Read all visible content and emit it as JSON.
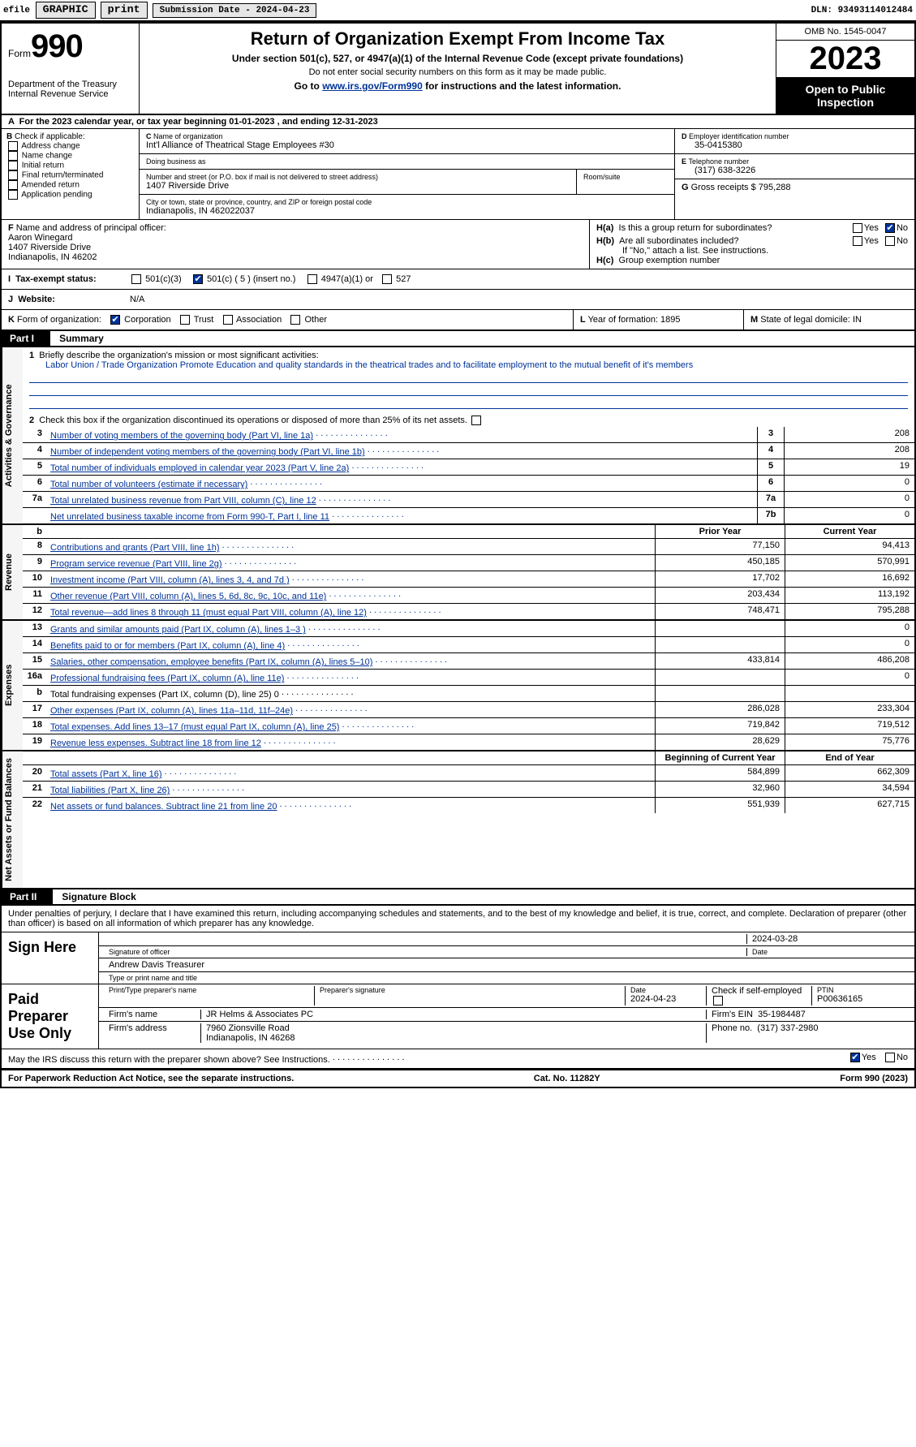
{
  "topbar": {
    "efile_prefix": "efile",
    "graphic_btn": "GRAPHIC",
    "print_btn": "print",
    "submission_label": "Submission Date - 2024-04-23",
    "dln": "DLN: 93493114012484"
  },
  "header": {
    "form_word": "Form",
    "form_number": "990",
    "dept": "Department of the Treasury Internal Revenue Service",
    "title": "Return of Organization Exempt From Income Tax",
    "sub1": "Under section 501(c), 527, or 4947(a)(1) of the Internal Revenue Code (except private foundations)",
    "sub2": "Do not enter social security numbers on this form as it may be made public.",
    "sub3_prefix": "Go to ",
    "sub3_link": "www.irs.gov/Form990",
    "sub3_suffix": " for instructions and the latest information.",
    "omb": "OMB No. 1545-0047",
    "year": "2023",
    "open": "Open to Public Inspection"
  },
  "rowA": "For the 2023 calendar year, or tax year beginning 01-01-2023    , and ending 12-31-2023",
  "boxB": {
    "header": "Check if applicable:",
    "opts": [
      "Address change",
      "Name change",
      "Initial return",
      "Final return/terminated",
      "Amended return",
      "Application pending"
    ]
  },
  "boxC": {
    "name_label": "Name of organization",
    "name": "Int'l Alliance of Theatrical Stage Employees #30",
    "dba_label": "Doing business as",
    "dba": "",
    "street_label": "Number and street (or P.O. box if mail is not delivered to street address)",
    "street": "1407 Riverside Drive",
    "room_label": "Room/suite",
    "city_label": "City or town, state or province, country, and ZIP or foreign postal code",
    "city": "Indianapolis, IN  462022037"
  },
  "boxD": {
    "label": "Employer identification number",
    "val": "35-0415380"
  },
  "boxE": {
    "label": "Telephone number",
    "val": "(317) 638-3226"
  },
  "boxG": {
    "label": "Gross receipts $",
    "val": "795,288"
  },
  "boxF": {
    "label": "Name and address of principal officer:",
    "name": "Aaron Winegard",
    "addr1": "1407 Riverside Drive",
    "addr2": "Indianapolis, IN  46202"
  },
  "boxH": {
    "a_label": "Is this a group return for subordinates?",
    "a_yes": false,
    "a_no": true,
    "b_label": "Are all subordinates included?",
    "b_note": "If \"No,\" attach a list. See instructions.",
    "c_label": "Group exemption number"
  },
  "rowI": {
    "label": "Tax-exempt status:",
    "c3": "501(c)(3)",
    "c_checked": true,
    "c_label": "501(c) ( 5 ) (insert no.)",
    "a1": "4947(a)(1) or",
    "s527": "527"
  },
  "rowJ": {
    "label": "Website:",
    "val": "N/A"
  },
  "rowK": {
    "label": "Form of organization:",
    "corp": "Corporation",
    "trust": "Trust",
    "assoc": "Association",
    "other": "Other",
    "corp_checked": true
  },
  "rowL": {
    "label": "Year of formation: 1895"
  },
  "rowM": {
    "label": "State of legal domicile: IN"
  },
  "partI": {
    "tag": "Part I",
    "title": "Summary"
  },
  "sections": {
    "gov": "Activities & Governance",
    "rev": "Revenue",
    "exp": "Expenses",
    "net": "Net Assets or Fund Balances"
  },
  "line1": {
    "prompt": "Briefly describe the organization's mission or most significant activities:",
    "text": "Labor Union / Trade Organization Promote Education and quality standards in the theatrical trades and to facilitate employment to the mutual benefit of it's members"
  },
  "line2": "Check this box  if the organization discontinued its operations or disposed of more than 25% of its net assets.",
  "govlines": [
    {
      "n": "3",
      "d": "Number of voting members of the governing body (Part VI, line 1a)",
      "ln": "3",
      "v": "208"
    },
    {
      "n": "4",
      "d": "Number of independent voting members of the governing body (Part VI, line 1b)",
      "ln": "4",
      "v": "208"
    },
    {
      "n": "5",
      "d": "Total number of individuals employed in calendar year 2023 (Part V, line 2a)",
      "ln": "5",
      "v": "19"
    },
    {
      "n": "6",
      "d": "Total number of volunteers (estimate if necessary)",
      "ln": "6",
      "v": "0"
    },
    {
      "n": "7a",
      "d": "Total unrelated business revenue from Part VIII, column (C), line 12",
      "ln": "7a",
      "v": "0"
    },
    {
      "n": "",
      "d": "Net unrelated business taxable income from Form 990-T, Part I, line 11",
      "ln": "7b",
      "v": "0"
    }
  ],
  "yearHdr": {
    "b": "b",
    "prior": "Prior Year",
    "current": "Current Year"
  },
  "rev": [
    {
      "n": "8",
      "d": "Contributions and grants (Part VIII, line 1h)",
      "p": "77,150",
      "c": "94,413"
    },
    {
      "n": "9",
      "d": "Program service revenue (Part VIII, line 2g)",
      "p": "450,185",
      "c": "570,991"
    },
    {
      "n": "10",
      "d": "Investment income (Part VIII, column (A), lines 3, 4, and 7d )",
      "p": "17,702",
      "c": "16,692"
    },
    {
      "n": "11",
      "d": "Other revenue (Part VIII, column (A), lines 5, 6d, 8c, 9c, 10c, and 11e)",
      "p": "203,434",
      "c": "113,192"
    },
    {
      "n": "12",
      "d": "Total revenue—add lines 8 through 11 (must equal Part VIII, column (A), line 12)",
      "p": "748,471",
      "c": "795,288"
    }
  ],
  "exp": [
    {
      "n": "13",
      "d": "Grants and similar amounts paid (Part IX, column (A), lines 1–3 )",
      "p": "",
      "c": "0"
    },
    {
      "n": "14",
      "d": "Benefits paid to or for members (Part IX, column (A), line 4)",
      "p": "",
      "c": "0"
    },
    {
      "n": "15",
      "d": "Salaries, other compensation, employee benefits (Part IX, column (A), lines 5–10)",
      "p": "433,814",
      "c": "486,208"
    },
    {
      "n": "16a",
      "d": "Professional fundraising fees (Part IX, column (A), line 11e)",
      "p": "",
      "c": "0"
    },
    {
      "n": "b",
      "d": "Total fundraising expenses (Part IX, column (D), line 25) 0",
      "p": "grey",
      "c": "grey",
      "plain": true
    },
    {
      "n": "17",
      "d": "Other expenses (Part IX, column (A), lines 11a–11d, 11f–24e)",
      "p": "286,028",
      "c": "233,304"
    },
    {
      "n": "18",
      "d": "Total expenses. Add lines 13–17 (must equal Part IX, column (A), line 25)",
      "p": "719,842",
      "c": "719,512"
    },
    {
      "n": "19",
      "d": "Revenue less expenses. Subtract line 18 from line 12",
      "p": "28,629",
      "c": "75,776"
    }
  ],
  "netHdr": {
    "prior": "Beginning of Current Year",
    "current": "End of Year"
  },
  "net": [
    {
      "n": "20",
      "d": "Total assets (Part X, line 16)",
      "p": "584,899",
      "c": "662,309"
    },
    {
      "n": "21",
      "d": "Total liabilities (Part X, line 26)",
      "p": "32,960",
      "c": "34,594"
    },
    {
      "n": "22",
      "d": "Net assets or fund balances. Subtract line 21 from line 20",
      "p": "551,939",
      "c": "627,715"
    }
  ],
  "partII": {
    "tag": "Part II",
    "title": "Signature Block"
  },
  "perjury": "Under penalties of perjury, I declare that I have examined this return, including accompanying schedules and statements, and to the best of my knowledge and belief, it is true, correct, and complete. Declaration of preparer (other than officer) is based on all information of which preparer has any knowledge.",
  "sign": {
    "here": "Sign Here",
    "sig_label": "Signature of officer",
    "officer": "Andrew Davis  Treasurer",
    "type_label": "Type or print name and title",
    "date": "2024-03-28",
    "date_label": "Date"
  },
  "paid": {
    "title": "Paid Preparer Use Only",
    "name_label": "Print/Type preparer's name",
    "sig_label": "Preparer's signature",
    "date_label": "Date",
    "date": "2024-04-23",
    "self_label": "Check  if self-employed",
    "ptin_label": "PTIN",
    "ptin": "P00636165",
    "firm_label": "Firm's name",
    "firm": "JR Helms & Associates PC",
    "ein_label": "Firm's EIN",
    "ein": "35-1984487",
    "addr_label": "Firm's address",
    "addr1": "7960 Zionsville Road",
    "addr2": "Indianapolis, IN  46268",
    "phone_label": "Phone no.",
    "phone": "(317) 337-2980"
  },
  "discuss": "May the IRS discuss this return with the preparer shown above? See Instructions.",
  "discuss_yes": true,
  "footer": {
    "l": "For Paperwork Reduction Act Notice, see the separate instructions.",
    "m": "Cat. No. 11282Y",
    "r": "Form 990 (2023)"
  },
  "colors": {
    "link": "#003399",
    "black": "#000000",
    "grey": "#cccccc"
  }
}
